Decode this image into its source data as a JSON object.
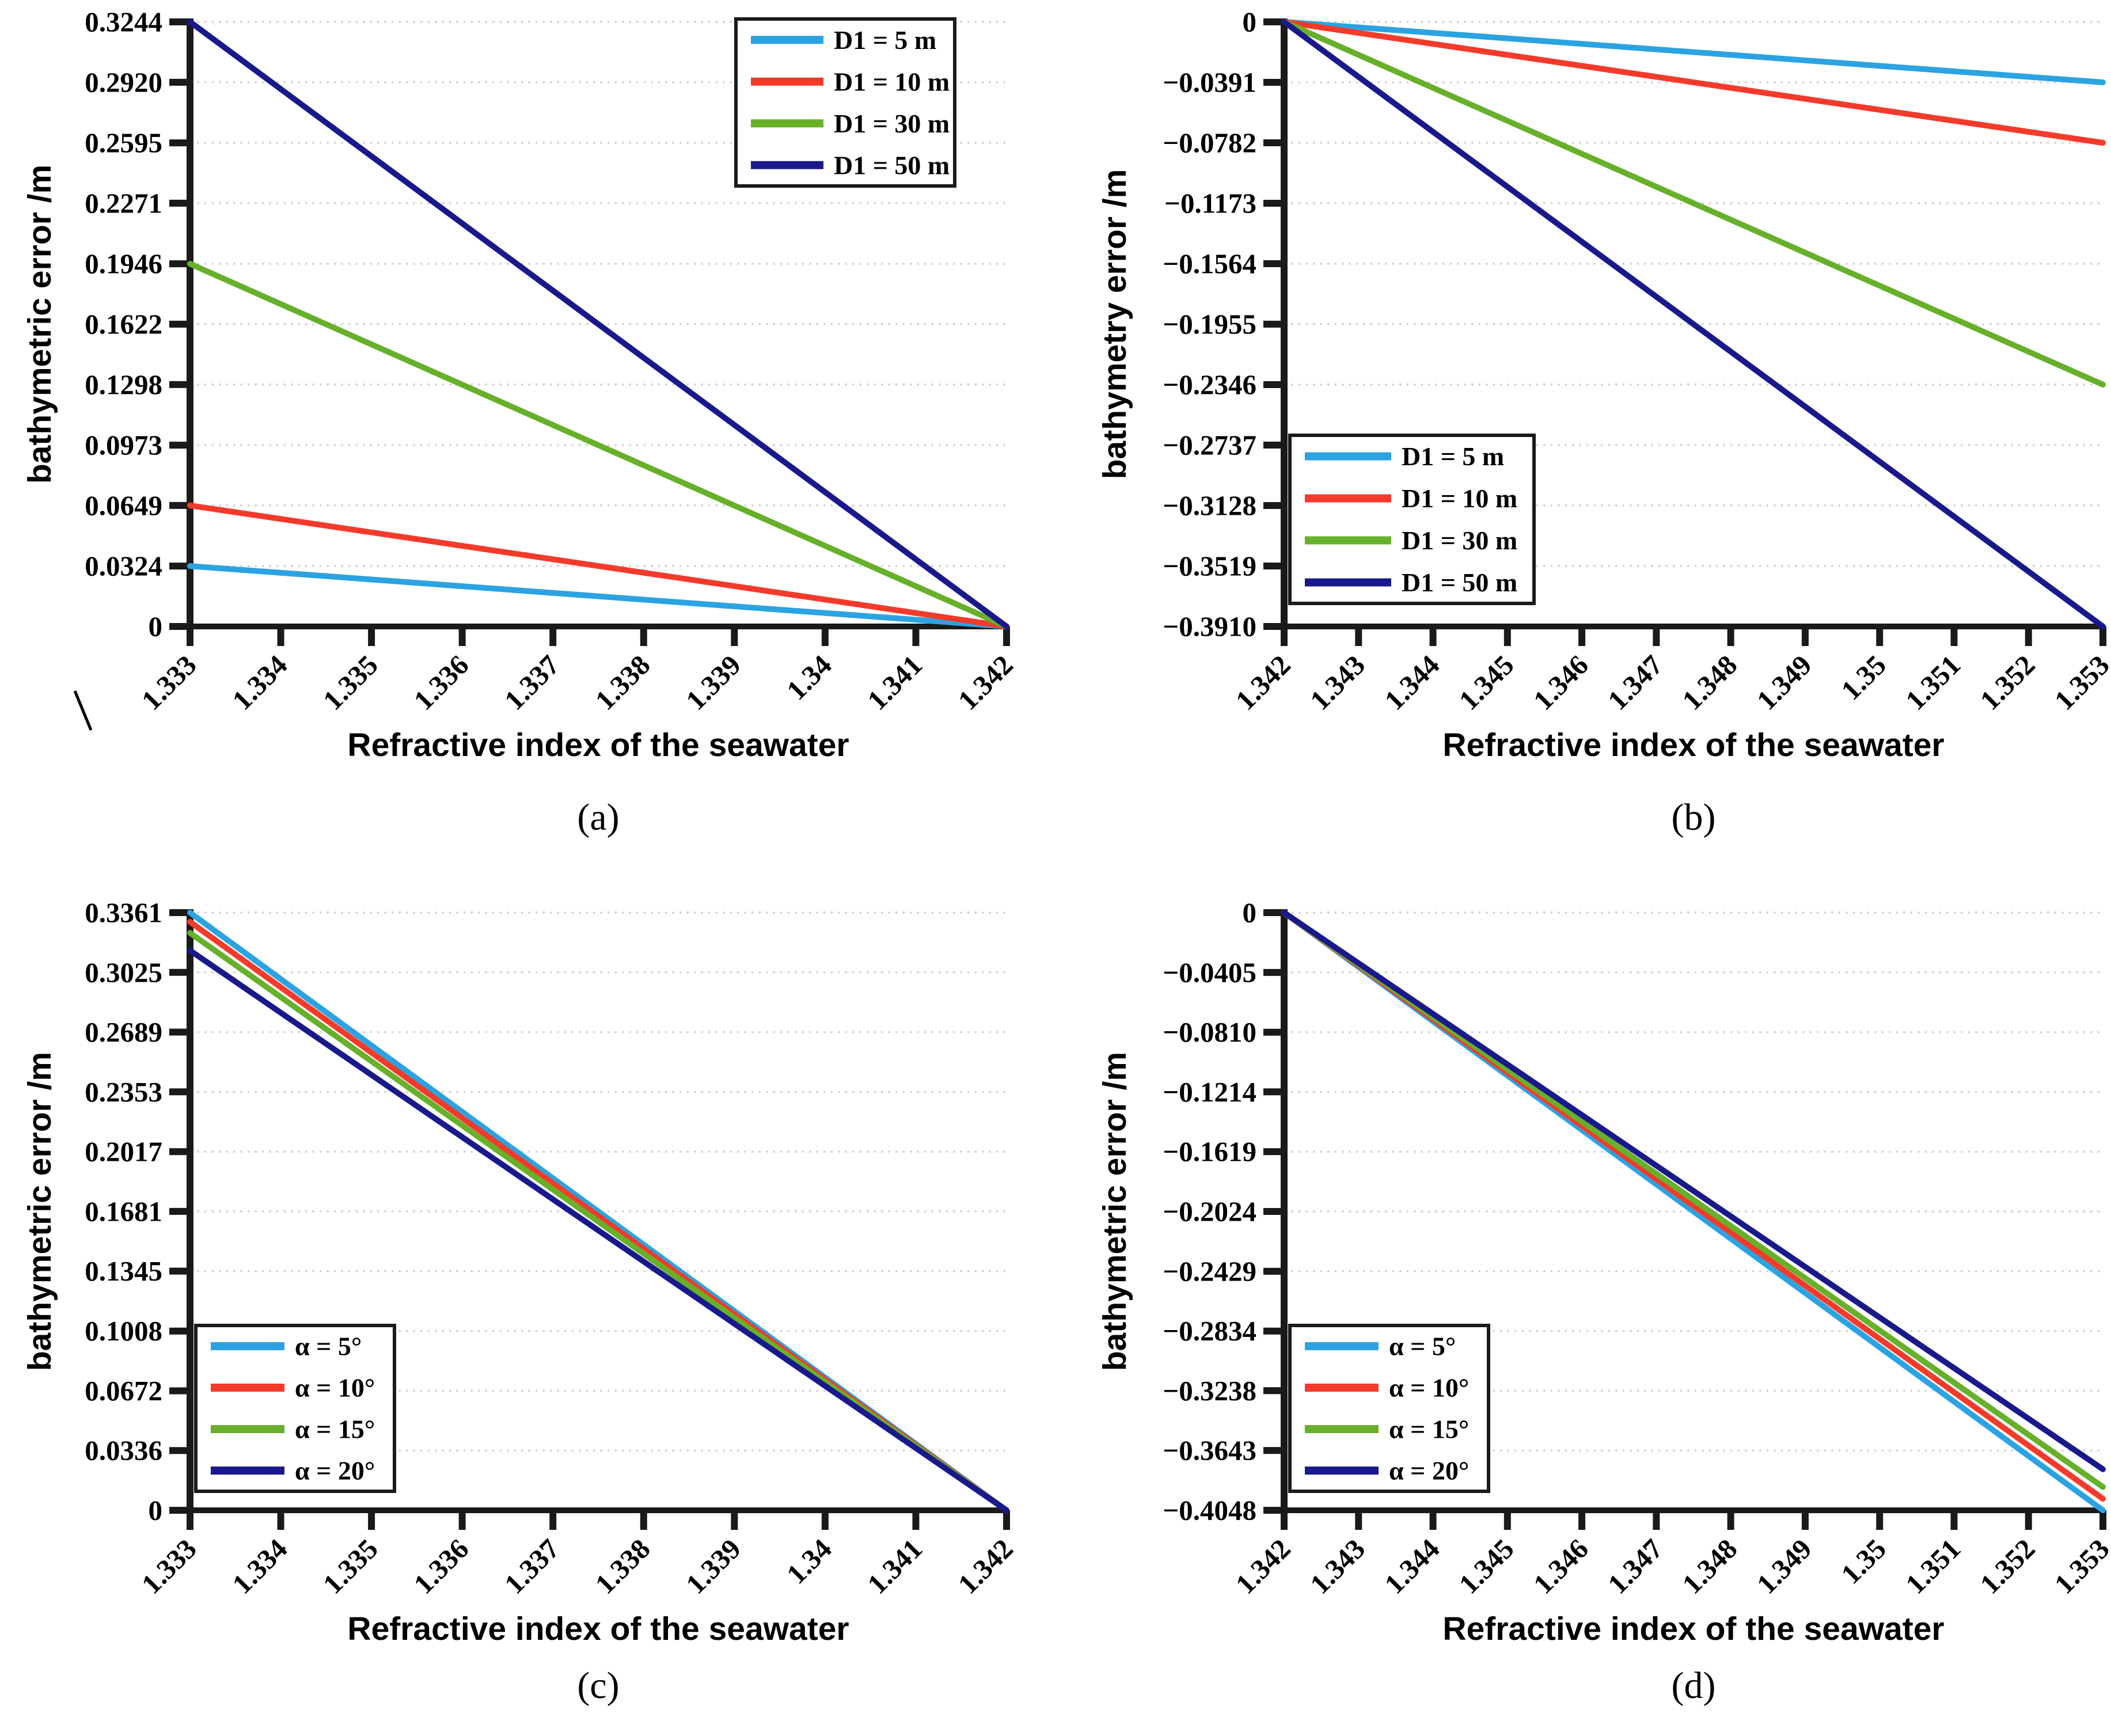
{
  "figure": {
    "background": "#FFFFFF",
    "axis_color": "#1A1A1A",
    "grid_color": "#D2D2D2",
    "text_color": "#000000",
    "legend_border_color": "#1A1A1A",
    "series_colors": {
      "light_blue": "#2CA3E1",
      "red": "#F43B2B",
      "green": "#66B02A",
      "navy": "#19198C"
    }
  },
  "chart_data": [
    {
      "id": "a",
      "type": "line",
      "caption": "(a)",
      "xlabel": "Refractive index of the seawater",
      "ylabel": "bathymetric error /m",
      "xlim": [
        1.333,
        1.342
      ],
      "ylim": [
        0,
        0.3244
      ],
      "grid": "horizontal-dotted",
      "axis_break_mark": true,
      "x_ticks": {
        "labels": [
          "1.333",
          "1.334",
          "1.335",
          "1.336",
          "1.337",
          "1.338",
          "1.339",
          "1.34",
          "1.341",
          "1.342"
        ],
        "values": [
          1.333,
          1.334,
          1.335,
          1.336,
          1.337,
          1.338,
          1.339,
          1.34,
          1.341,
          1.342
        ]
      },
      "y_ticks": {
        "labels": [
          "0.3244",
          "0.2920",
          "0.2595",
          "0.2271",
          "0.1946",
          "0.1622",
          "0.1298",
          "0.0973",
          "0.0649",
          "0.0324",
          "0"
        ],
        "values": [
          0.3244,
          0.292,
          0.2595,
          0.2271,
          0.1946,
          0.1622,
          0.1298,
          0.0973,
          0.0649,
          0.0324,
          0
        ]
      },
      "legend": {
        "position": "top-right",
        "items": [
          {
            "label": "D1 = 5 m",
            "color": "#2CA3E1"
          },
          {
            "label": "D1 = 10 m",
            "color": "#F43B2B"
          },
          {
            "label": "D1 = 30 m",
            "color": "#66B02A"
          },
          {
            "label": "D1 = 50 m",
            "color": "#19198C"
          }
        ]
      },
      "series": [
        {
          "name": "D1 = 5 m",
          "color": "#2CA3E1",
          "points": [
            [
              1.333,
              0.0324
            ],
            [
              1.342,
              0
            ]
          ]
        },
        {
          "name": "D1 = 10 m",
          "color": "#F43B2B",
          "points": [
            [
              1.333,
              0.0649
            ],
            [
              1.342,
              0
            ]
          ]
        },
        {
          "name": "D1 = 30 m",
          "color": "#66B02A",
          "points": [
            [
              1.333,
              0.1946
            ],
            [
              1.342,
              0
            ]
          ]
        },
        {
          "name": "D1 = 50 m",
          "color": "#19198C",
          "points": [
            [
              1.333,
              0.3244
            ],
            [
              1.342,
              0
            ]
          ]
        }
      ]
    },
    {
      "id": "b",
      "type": "line",
      "caption": "(b)",
      "xlabel": "Refractive index of the seawater",
      "ylabel": "bathymetry error /m",
      "xlim": [
        1.342,
        1.353
      ],
      "ylim": [
        -0.391,
        0
      ],
      "grid": "horizontal-dotted",
      "axis_break_mark": false,
      "x_ticks": {
        "labels": [
          "1.342",
          "1.343",
          "1.344",
          "1.345",
          "1.346",
          "1.347",
          "1.348",
          "1.349",
          "1.35",
          "1.351",
          "1.352",
          "1.353"
        ],
        "values": [
          1.342,
          1.343,
          1.344,
          1.345,
          1.346,
          1.347,
          1.348,
          1.349,
          1.35,
          1.351,
          1.352,
          1.353
        ]
      },
      "y_ticks": {
        "labels": [
          "0",
          "−0.0391",
          "−0.0782",
          "−0.1173",
          "−0.1564",
          "−0.1955",
          "−0.2346",
          "−0.2737",
          "−0.3128",
          "−0.3519",
          "−0.3910"
        ],
        "values": [
          0,
          -0.0391,
          -0.0782,
          -0.1173,
          -0.1564,
          -0.1955,
          -0.2346,
          -0.2737,
          -0.3128,
          -0.3519,
          -0.391
        ]
      },
      "legend": {
        "position": "bottom-left",
        "items": [
          {
            "label": "D1 = 5 m",
            "color": "#2CA3E1"
          },
          {
            "label": "D1 = 10 m",
            "color": "#F43B2B"
          },
          {
            "label": "D1 = 30 m",
            "color": "#66B02A"
          },
          {
            "label": "D1 = 50 m",
            "color": "#19198C"
          }
        ]
      },
      "series": [
        {
          "name": "D1 = 5 m",
          "color": "#2CA3E1",
          "points": [
            [
              1.342,
              0
            ],
            [
              1.353,
              -0.0391
            ]
          ]
        },
        {
          "name": "D1 = 10 m",
          "color": "#F43B2B",
          "points": [
            [
              1.342,
              0
            ],
            [
              1.353,
              -0.0782
            ]
          ]
        },
        {
          "name": "D1 = 30 m",
          "color": "#66B02A",
          "points": [
            [
              1.342,
              0
            ],
            [
              1.353,
              -0.2346
            ]
          ]
        },
        {
          "name": "D1 = 50 m",
          "color": "#19198C",
          "points": [
            [
              1.342,
              0
            ],
            [
              1.353,
              -0.391
            ]
          ]
        }
      ]
    },
    {
      "id": "c",
      "type": "line",
      "caption": "(c)",
      "xlabel": "Refractive index of the seawater",
      "ylabel": "bathymetric error /m",
      "xlim": [
        1.333,
        1.342
      ],
      "ylim": [
        0,
        0.3361
      ],
      "grid": "horizontal-dotted",
      "axis_break_mark": false,
      "x_ticks": {
        "labels": [
          "1.333",
          "1.334",
          "1.335",
          "1.336",
          "1.337",
          "1.338",
          "1.339",
          "1.34",
          "1.341",
          "1.342"
        ],
        "values": [
          1.333,
          1.334,
          1.335,
          1.336,
          1.337,
          1.338,
          1.339,
          1.34,
          1.341,
          1.342
        ]
      },
      "y_ticks": {
        "labels": [
          "0.3361",
          "0.3025",
          "0.2689",
          "0.2353",
          "0.2017",
          "0.1681",
          "0.1345",
          "0.1008",
          "0.0672",
          "0.0336",
          "0"
        ],
        "values": [
          0.3361,
          0.3025,
          0.2689,
          0.2353,
          0.2017,
          0.1681,
          0.1345,
          0.1008,
          0.0672,
          0.0336,
          0
        ]
      },
      "legend": {
        "position": "bottom-left",
        "items": [
          {
            "label": "α = 5°",
            "color": "#2CA3E1"
          },
          {
            "label": "α = 10°",
            "color": "#F43B2B"
          },
          {
            "label": "α = 15°",
            "color": "#66B02A"
          },
          {
            "label": "α = 20°",
            "color": "#19198C"
          }
        ]
      },
      "series": [
        {
          "name": "α = 5°",
          "color": "#2CA3E1",
          "points": [
            [
              1.333,
              0.3361
            ],
            [
              1.342,
              0
            ]
          ]
        },
        {
          "name": "α = 10°",
          "color": "#F43B2B",
          "points": [
            [
              1.333,
              0.3309
            ],
            [
              1.342,
              0
            ]
          ]
        },
        {
          "name": "α = 15°",
          "color": "#66B02A",
          "points": [
            [
              1.333,
              0.3247
            ],
            [
              1.342,
              0
            ]
          ]
        },
        {
          "name": "α = 20°",
          "color": "#19198C",
          "points": [
            [
              1.333,
              0.3148
            ],
            [
              1.342,
              0
            ]
          ]
        }
      ]
    },
    {
      "id": "d",
      "type": "line",
      "caption": "(d)",
      "xlabel": "Refractive index of the seawater",
      "ylabel": "bathymetric error /m",
      "xlim": [
        1.342,
        1.353
      ],
      "ylim": [
        -0.4048,
        0
      ],
      "grid": "horizontal-dotted",
      "axis_break_mark": false,
      "x_ticks": {
        "labels": [
          "1.342",
          "1.343",
          "1.344",
          "1.345",
          "1.346",
          "1.347",
          "1.348",
          "1.349",
          "1.35",
          "1.351",
          "1.352",
          "1.353"
        ],
        "values": [
          1.342,
          1.343,
          1.344,
          1.345,
          1.346,
          1.347,
          1.348,
          1.349,
          1.35,
          1.351,
          1.352,
          1.353
        ]
      },
      "y_ticks": {
        "labels": [
          "0",
          "−0.0405",
          "−0.0810",
          "−0.1214",
          "−0.1619",
          "−0.2024",
          "−0.2429",
          "−0.2834",
          "−0.3238",
          "−0.3643",
          "−0.4048"
        ],
        "values": [
          0,
          -0.0405,
          -0.081,
          -0.1214,
          -0.1619,
          -0.2024,
          -0.2429,
          -0.2834,
          -0.3238,
          -0.3643,
          -0.4048
        ]
      },
      "legend": {
        "position": "bottom-left",
        "items": [
          {
            "label": "α = 5°",
            "color": "#2CA3E1"
          },
          {
            "label": "α = 10°",
            "color": "#F43B2B"
          },
          {
            "label": "α = 15°",
            "color": "#66B02A"
          },
          {
            "label": "α = 20°",
            "color": "#19198C"
          }
        ]
      },
      "series": [
        {
          "name": "α = 5°",
          "color": "#2CA3E1",
          "points": [
            [
              1.342,
              0
            ],
            [
              1.353,
              -0.4048
            ]
          ]
        },
        {
          "name": "α = 10°",
          "color": "#F43B2B",
          "points": [
            [
              1.342,
              0
            ],
            [
              1.353,
              -0.397
            ]
          ]
        },
        {
          "name": "α = 15°",
          "color": "#66B02A",
          "points": [
            [
              1.342,
              0
            ],
            [
              1.353,
              -0.389
            ]
          ]
        },
        {
          "name": "α = 20°",
          "color": "#19198C",
          "points": [
            [
              1.342,
              0
            ],
            [
              1.353,
              -0.377
            ]
          ]
        }
      ]
    }
  ]
}
